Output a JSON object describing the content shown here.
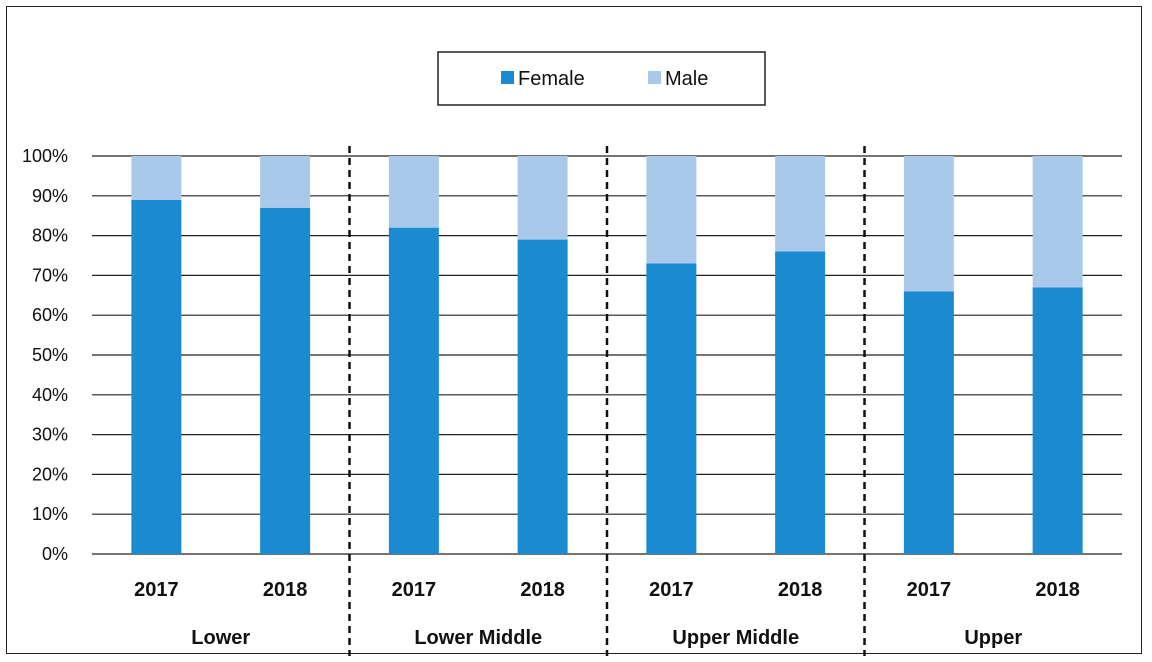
{
  "chart_data": {
    "type": "bar",
    "stacked": true,
    "percent_stacked": true,
    "groups": [
      "Lower",
      "Lower Middle",
      "Upper Middle",
      "Upper"
    ],
    "categories": [
      "2017",
      "2018",
      "2017",
      "2018",
      "2017",
      "2018",
      "2017",
      "2018"
    ],
    "series": [
      {
        "name": "Female",
        "color": "#1a8bd1",
        "values": [
          89,
          87,
          82,
          79,
          73,
          76,
          66,
          67
        ]
      },
      {
        "name": "Male",
        "color": "#a9c9ea",
        "values": [
          11,
          13,
          18,
          21,
          27,
          24,
          34,
          33
        ]
      }
    ],
    "ylim": [
      0,
      100
    ],
    "yticks": [
      "0%",
      "10%",
      "20%",
      "30%",
      "40%",
      "50%",
      "60%",
      "70%",
      "80%",
      "90%",
      "100%"
    ],
    "grid": true,
    "legend_position": "top-center",
    "group_separator": "dashed"
  }
}
